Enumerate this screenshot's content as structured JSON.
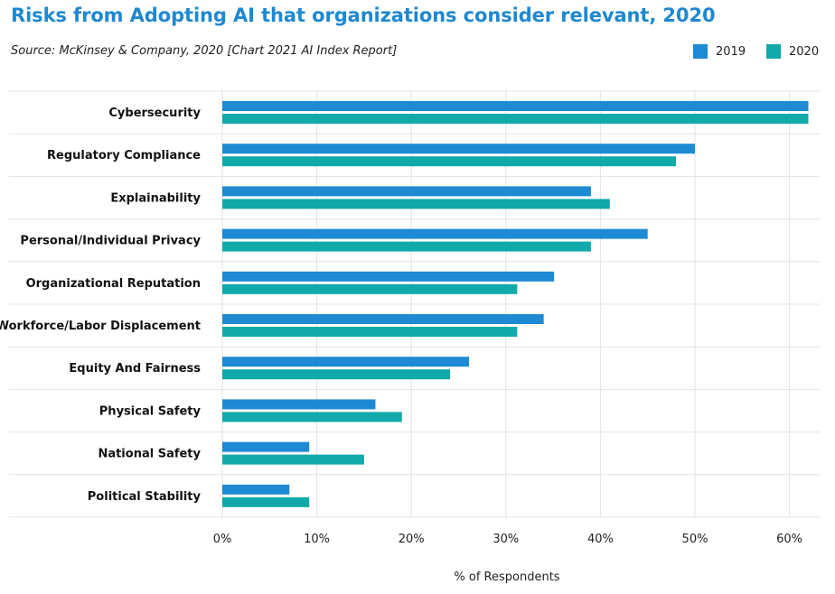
{
  "chart_data": {
    "type": "bar",
    "orientation": "horizontal",
    "title": "Risks from Adopting AI that organizations consider relevant, 2020",
    "subtitle": "Source: McKinsey & Company, 2020 [Chart 2021 AI Index Report]",
    "xlabel": "% of Respondents",
    "ylabel": "",
    "xlim": [
      0,
      62
    ],
    "x_ticks": [
      0,
      10,
      20,
      30,
      40,
      50,
      60
    ],
    "x_tick_labels": [
      "0%",
      "10%",
      "20%",
      "30%",
      "40%",
      "50%",
      "60%"
    ],
    "grid": "vertical",
    "legend_position": "top-right",
    "categories": [
      "Cybersecurity",
      "Regulatory Compliance",
      "Explainability",
      "Personal/Individual Privacy",
      "Organizational Reputation",
      "Workforce/Labor Displacement",
      "Equity And Fairness",
      "Physical Safety",
      "National Safety",
      "Political Stability"
    ],
    "series": [
      {
        "name": "2019",
        "color": "#1d8ad3",
        "values": [
          62,
          50,
          39,
          45,
          35.1,
          34,
          26.1,
          16.2,
          9.2,
          7.1
        ]
      },
      {
        "name": "2020",
        "color": "#11a9a9",
        "values": [
          62,
          48,
          41,
          39,
          31.2,
          31.2,
          24.1,
          19,
          15,
          9.2
        ]
      }
    ]
  }
}
